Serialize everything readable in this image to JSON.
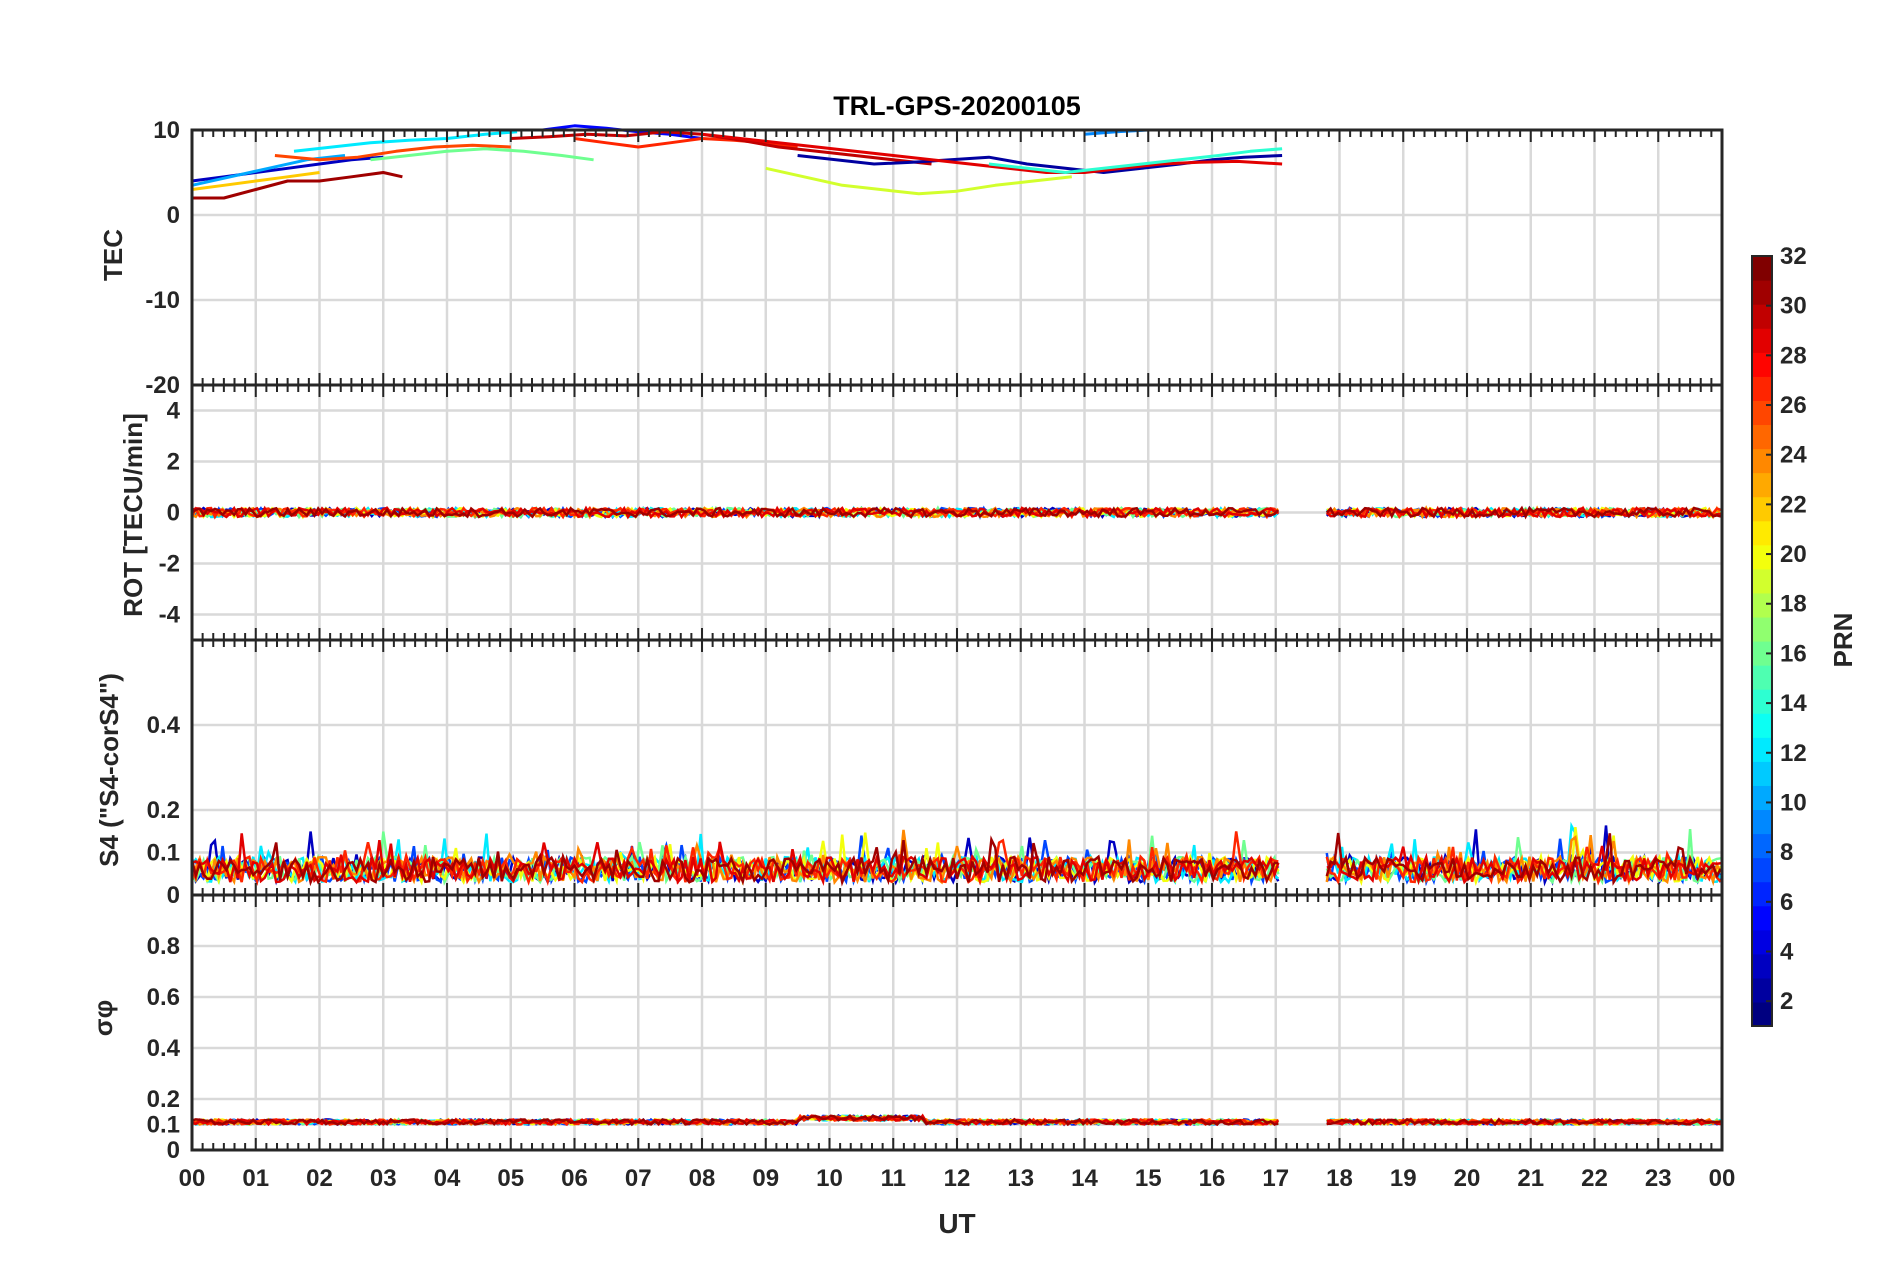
{
  "chart_data": {
    "type": "line",
    "title": "TRL-GPS-20200105",
    "xlabel": "UT",
    "x_ticks": [
      "00",
      "01",
      "02",
      "03",
      "04",
      "05",
      "06",
      "07",
      "08",
      "09",
      "10",
      "11",
      "12",
      "13",
      "14",
      "15",
      "16",
      "17",
      "18",
      "19",
      "20",
      "21",
      "22",
      "23",
      "00"
    ],
    "xlim": [
      0,
      24
    ],
    "grid": true,
    "colorbar": {
      "label": "PRN",
      "range": [
        1,
        32
      ],
      "ticks": [
        2,
        4,
        6,
        8,
        10,
        12,
        14,
        16,
        18,
        20,
        22,
        24,
        26,
        28,
        30,
        32
      ],
      "colormap": "jet"
    },
    "panels": [
      {
        "ylabel": "TEC",
        "ylim": [
          -20,
          10
        ],
        "yticks": [
          -20,
          -10,
          0,
          10
        ],
        "ytick_labels": [
          "-20",
          "-10",
          "0",
          "10"
        ],
        "series": [
          {
            "prn": 31,
            "x": [
              0,
              0.5,
              1,
              1.5,
              2,
              2.5,
              3,
              3.3
            ],
            "y": [
              2,
              2,
              3,
              4,
              4,
              4.5,
              5,
              4.5
            ]
          },
          {
            "prn": 3,
            "x": [
              0,
              0.5,
              1,
              1.5,
              2,
              2.5,
              3
            ],
            "y": [
              4,
              4.5,
              5,
              5.5,
              6,
              6.5,
              6.8
            ]
          },
          {
            "prn": 10,
            "x": [
              0,
              0.6,
              1.2,
              1.8,
              2.4
            ],
            "y": [
              3.5,
              4.5,
              5.5,
              6.5,
              7
            ]
          },
          {
            "prn": 22,
            "x": [
              0,
              0.5,
              1,
              1.5,
              2
            ],
            "y": [
              3,
              3.5,
              4,
              4.5,
              5
            ]
          },
          {
            "prn": 26,
            "x": [
              1.3,
              2,
              2.6,
              3.2,
              3.8,
              4.4,
              5
            ],
            "y": [
              7,
              6.5,
              6.8,
              7.5,
              8,
              8.2,
              8
            ]
          },
          {
            "prn": 12,
            "x": [
              1.6,
              2.2,
              2.8,
              3.4,
              4,
              4.6,
              5.1
            ],
            "y": [
              7.5,
              8,
              8.5,
              8.8,
              9,
              9.5,
              9.8
            ]
          },
          {
            "prn": 16,
            "x": [
              2.8,
              3.4,
              4,
              4.6,
              5.2,
              5.8,
              6.3
            ],
            "y": [
              6.5,
              7,
              7.5,
              7.8,
              7.5,
              7,
              6.5
            ]
          },
          {
            "prn": 5,
            "x": [
              5.5,
              6,
              6.5,
              7,
              7.5,
              8
            ],
            "y": [
              10,
              10.5,
              10.2,
              9.8,
              9.5,
              9
            ]
          },
          {
            "prn": 27,
            "x": [
              6,
              6.5,
              7,
              7.5,
              8,
              8.5,
              9,
              9.5
            ],
            "y": [
              9,
              8.5,
              8,
              8.5,
              9,
              8.8,
              8.5,
              8
            ]
          },
          {
            "prn": 30,
            "x": [
              5,
              5.6,
              6.2,
              6.8,
              7.4,
              8,
              8.6,
              9.2,
              9.8,
              10.4,
              11,
              11.6
            ],
            "y": [
              9,
              9.2,
              9.5,
              9.3,
              9.8,
              9.5,
              8.8,
              8,
              7.5,
              7,
              6.5,
              6
            ]
          },
          {
            "prn": 19,
            "x": [
              9,
              9.6,
              10.2,
              10.8,
              11.4,
              12,
              12.6,
              13.2,
              13.8
            ],
            "y": [
              5.5,
              4.5,
              3.5,
              3,
              2.5,
              2.8,
              3.5,
              4,
              4.5
            ]
          },
          {
            "prn": 2,
            "x": [
              9.5,
              10.1,
              10.7,
              11.3,
              11.9,
              12.5,
              13.1,
              13.7,
              14.3,
              14.9,
              15.5,
              16,
              16.5,
              17.1
            ],
            "y": [
              7,
              6.5,
              6,
              6.2,
              6.5,
              6.8,
              6,
              5.5,
              5,
              5.5,
              6,
              6.5,
              6.8,
              7
            ]
          },
          {
            "prn": 29,
            "x": [
              8,
              8.6,
              9.2,
              9.8,
              10.4,
              11,
              11.6,
              12.2,
              12.8,
              13.4,
              14,
              14.6,
              15.2,
              15.8,
              16.4,
              17.1
            ],
            "y": [
              9.5,
              9,
              8.5,
              8,
              7.5,
              7,
              6.5,
              6,
              5.5,
              5,
              5,
              5.5,
              6,
              6.2,
              6.3,
              6
            ]
          },
          {
            "prn": 14,
            "x": [
              12.5,
              13.1,
              13.7,
              14.3,
              14.9,
              15.5,
              16.1,
              16.6,
              17.1
            ],
            "y": [
              6,
              5.5,
              5,
              5.5,
              6,
              6.5,
              7,
              7.5,
              7.8
            ]
          },
          {
            "prn": 9,
            "x": [
              14,
              14.5,
              15,
              15.3
            ],
            "y": [
              9.5,
              9.8,
              10,
              10
            ]
          }
        ]
      },
      {
        "ylabel": "ROT [TECU/min]",
        "ylim": [
          -5,
          5
        ],
        "yticks": [
          -4,
          -2,
          0,
          2,
          4
        ],
        "ytick_labels": [
          "-4",
          "-2",
          "0",
          "2",
          "4"
        ]
      },
      {
        "ylabel": "S4 (\"S4-corS4\")",
        "ylim": [
          0,
          0.6
        ],
        "yticks": [
          0,
          0.1,
          0.2,
          0.4
        ],
        "ytick_labels": [
          "0",
          "0.1",
          "0.2",
          "0.4"
        ]
      },
      {
        "ylabel": "σφ",
        "ylim": [
          0,
          1
        ],
        "yticks": [
          0,
          0.1,
          0.2,
          0.4,
          0.6,
          0.8
        ],
        "ytick_labels": [
          "0",
          "0.1",
          "0.2",
          "0.4",
          "0.6",
          "0.8"
        ]
      }
    ]
  }
}
